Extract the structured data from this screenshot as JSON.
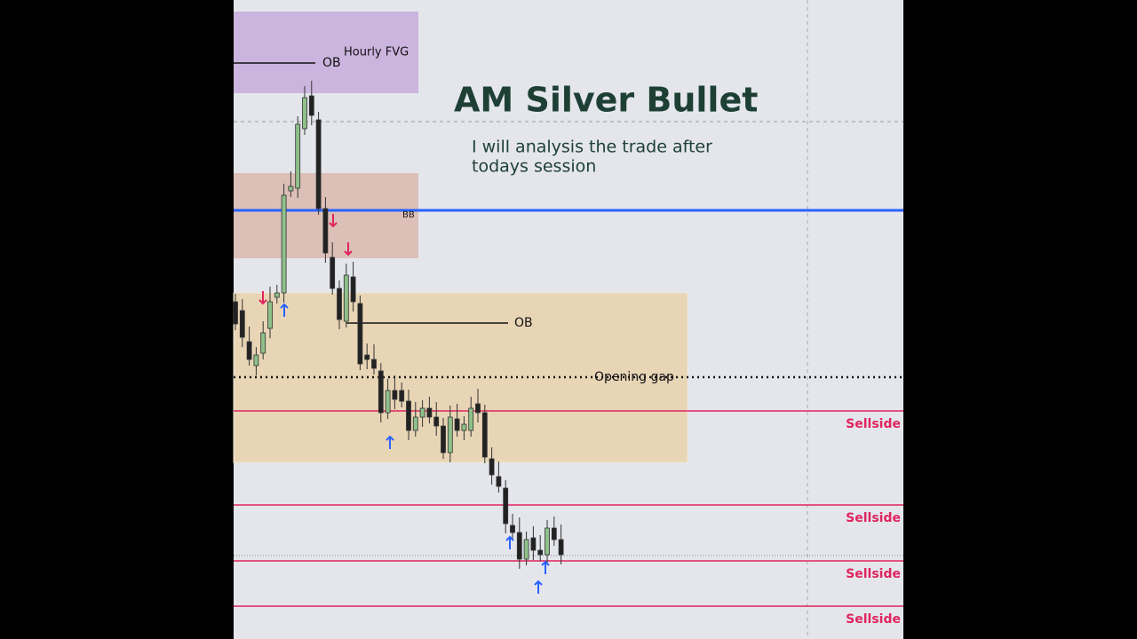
{
  "title": "AM Silver Bullet",
  "subtitle": [
    "I will analysis the trade after",
    "todays session"
  ],
  "annotations": {
    "hourly_fvg": "Hourly FVG",
    "ob_top": "OB",
    "bb": "BB",
    "ob_mid": "OB",
    "opening_gap": "Opening gap"
  },
  "sellside_labels": [
    "Sellside",
    "Sellside",
    "Sellside",
    "Sellside"
  ]
}
